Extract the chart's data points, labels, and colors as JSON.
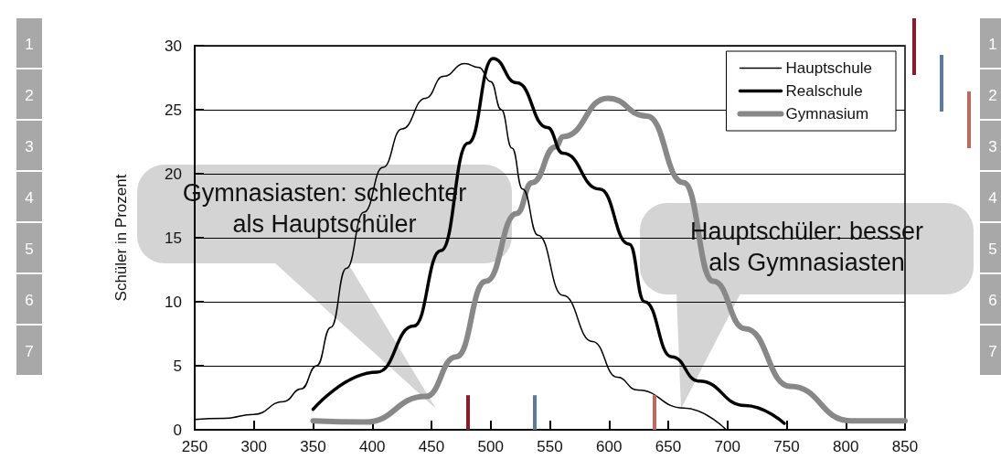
{
  "chart_data": {
    "type": "line",
    "ylabel": "Schüler in Prozent",
    "xlim": [
      250,
      850
    ],
    "xticks": [
      250,
      300,
      350,
      400,
      450,
      500,
      550,
      600,
      650,
      700,
      750,
      800,
      850
    ],
    "ylim": [
      0,
      30
    ],
    "yticks": [
      0,
      5,
      10,
      15,
      20,
      25,
      30
    ],
    "grid": "y",
    "legend": "top right",
    "marker": "none",
    "series": [
      {
        "name": "Hauptschule",
        "color": "#000000",
        "x": [
          250,
          275,
          300,
          325,
          340,
          353,
          365,
          378,
          393,
          409,
          425,
          445,
          460,
          478,
          490,
          500,
          509,
          518,
          527,
          540,
          561,
          586,
          607,
          624,
          663,
          699
        ],
        "values": [
          0.8,
          0.9,
          1.2,
          2.2,
          3.2,
          5,
          8,
          12.6,
          17,
          20.5,
          23.5,
          25.9,
          27.6,
          28.6,
          28.3,
          27.2,
          25,
          22,
          18.8,
          15.2,
          10.5,
          6.9,
          4.1,
          3.1,
          1.7,
          0
        ]
      },
      {
        "name": "Realschule",
        "color": "#000000",
        "x": [
          350,
          404,
          435,
          458,
          481,
          502,
          522,
          548,
          561,
          592,
          617,
          630,
          653,
          676,
          715,
          748
        ],
        "values": [
          1.6,
          4.5,
          8.1,
          14,
          22.4,
          29,
          27.1,
          23.6,
          21.6,
          18.8,
          14.5,
          10,
          5.7,
          3.8,
          1.9,
          0.5
        ]
      },
      {
        "name": "Gymnasium",
        "color": "#888888",
        "x": [
          350,
          394,
          445,
          471,
          496,
          522,
          535,
          555,
          561,
          599,
          632,
          663,
          688,
          715,
          753,
          804,
          845,
          850
        ],
        "values": [
          0.7,
          0.6,
          2.6,
          5.7,
          11.6,
          16.9,
          19.3,
          22.1,
          22.9,
          25.9,
          24.5,
          19.3,
          11.6,
          7.9,
          3.4,
          0.7,
          0.7,
          0.7
        ]
      }
    ],
    "ref_lines": [
      {
        "axis": "x",
        "value": 481,
        "color": "#8b1a2a"
      },
      {
        "axis": "x",
        "value": 537,
        "color": "#5b7aa0"
      },
      {
        "axis": "x",
        "value": 638,
        "color": "#c0675e"
      }
    ],
    "annotations": [
      "Gymnasiasten: schlechter\nals Hauptschüler",
      "Hauptschüler: besser\nals Gymnasiasten",
      "1",
      "2",
      "3",
      "4",
      "5",
      "6",
      "7"
    ]
  }
}
